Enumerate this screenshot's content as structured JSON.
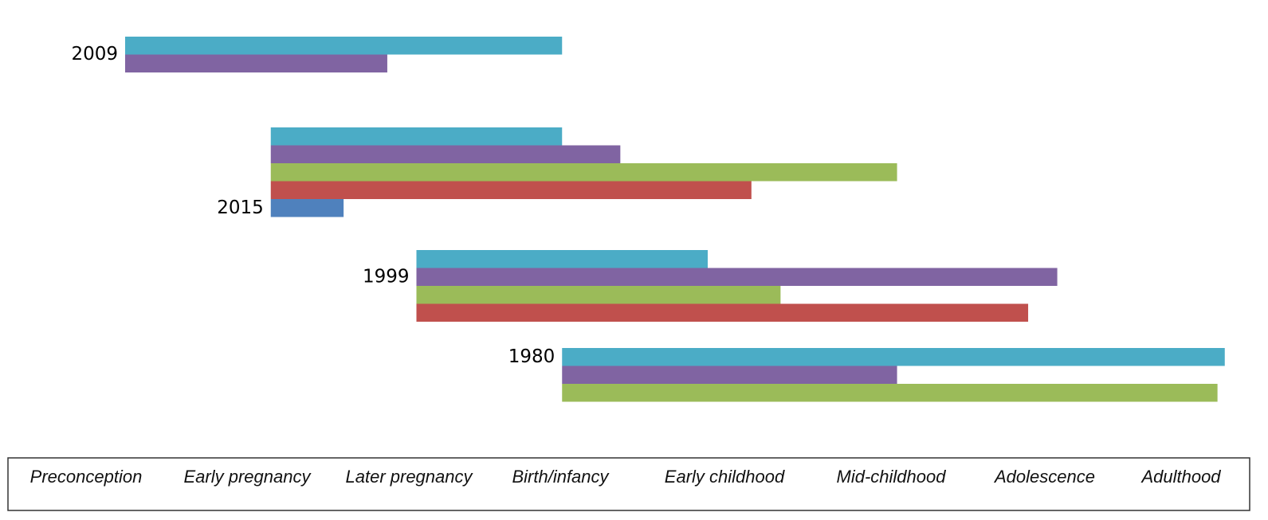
{
  "chart_data": {
    "type": "floating-bar",
    "xlim": [
      0,
      7.7
    ],
    "groups": [
      {
        "label": "2009",
        "bars": [
          {
            "start": 0,
            "end": 3,
            "color": "#4bacc6"
          },
          {
            "start": 0,
            "end": 1.8,
            "color": "#8064a2"
          }
        ]
      },
      {
        "label": "2015",
        "bars": [
          {
            "start": 1,
            "end": 3,
            "color": "#4bacc6"
          },
          {
            "start": 1,
            "end": 3.4,
            "color": "#8064a2"
          },
          {
            "start": 1,
            "end": 5.3,
            "color": "#9bbb59"
          },
          {
            "start": 1,
            "end": 4.3,
            "color": "#c0504d"
          },
          {
            "start": 1,
            "end": 1.5,
            "color": "#4f81bd"
          }
        ]
      },
      {
        "label": "1999",
        "bars": [
          {
            "start": 2,
            "end": 4,
            "color": "#4bacc6"
          },
          {
            "start": 2,
            "end": 6.4,
            "color": "#8064a2"
          },
          {
            "start": 2,
            "end": 4.5,
            "color": "#9bbb59"
          },
          {
            "start": 2,
            "end": 6.2,
            "color": "#c0504d"
          }
        ]
      },
      {
        "label": "1980",
        "bars": [
          {
            "start": 3,
            "end": 7.55,
            "color": "#4bacc6"
          },
          {
            "start": 3,
            "end": 5.3,
            "color": "#8064a2"
          },
          {
            "start": 3,
            "end": 7.5,
            "color": "#9bbb59"
          }
        ]
      }
    ],
    "categories": [
      "Preconception",
      "Early pregnancy",
      "Later pregnancy",
      "Birth/infancy",
      "Early childhood",
      "Mid-childhood",
      "Adolescence",
      "Adulthood"
    ]
  }
}
